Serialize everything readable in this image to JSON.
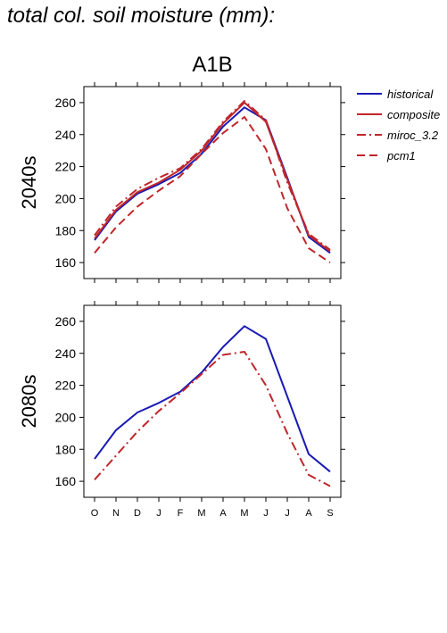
{
  "page_title": "total col. soil moisture (mm):",
  "chart_data": {
    "type": "line",
    "title": "A1B",
    "categories": [
      "O",
      "N",
      "D",
      "J",
      "F",
      "M",
      "A",
      "M",
      "J",
      "J",
      "A",
      "S"
    ],
    "ylim": [
      150,
      270
    ],
    "yticks": [
      160,
      180,
      200,
      220,
      240,
      260
    ],
    "legend": {
      "placement": "right",
      "entries": [
        {
          "name": "historical",
          "color": "#1a1ab4",
          "dash": "solid"
        },
        {
          "name": "composite",
          "color": "#c0262a",
          "dash": "solid"
        },
        {
          "name": "miroc_3.2",
          "color": "#c0262a",
          "dash": "dashdot"
        },
        {
          "name": "pcm1",
          "color": "#c0262a",
          "dash": "dashed"
        }
      ]
    },
    "panels": [
      {
        "label": "2040s",
        "series": [
          {
            "name": "historical",
            "color": "#1a1ab4",
            "dash": "solid",
            "values": [
              174,
              192,
              203,
              209,
              216,
              228,
              245,
              257,
              249,
              213,
              176,
              166
            ]
          },
          {
            "name": "composite",
            "color": "#c0262a",
            "dash": "solid",
            "values": [
              175,
              193,
              204,
              210,
              218,
              230,
              247,
              260,
              248,
              212,
              177,
              167
            ]
          },
          {
            "name": "miroc_3.2",
            "color": "#c0262a",
            "dash": "dashdot",
            "values": [
              177,
              195,
              206,
              213,
              219,
              231,
              248,
              261,
              249,
              210,
              178,
              168
            ]
          },
          {
            "name": "pcm1",
            "color": "#c0262a",
            "dash": "dashed",
            "values": [
              166,
              182,
              195,
              205,
              214,
              228,
              241,
              251,
              231,
              194,
              169,
              160
            ]
          }
        ]
      },
      {
        "label": "2080s",
        "series": [
          {
            "name": "historical",
            "color": "#1a1ab4",
            "dash": "solid",
            "values": [
              174,
              192,
              203,
              209,
              216,
              228,
              244,
              257,
              249,
              213,
              177,
              166
            ]
          },
          {
            "name": "miroc_3.2",
            "color": "#c0262a",
            "dash": "dashdot",
            "values": [
              161,
              176,
              191,
              204,
              215,
              227,
              239,
              241,
              220,
              190,
              164,
              157
            ]
          }
        ]
      }
    ]
  }
}
